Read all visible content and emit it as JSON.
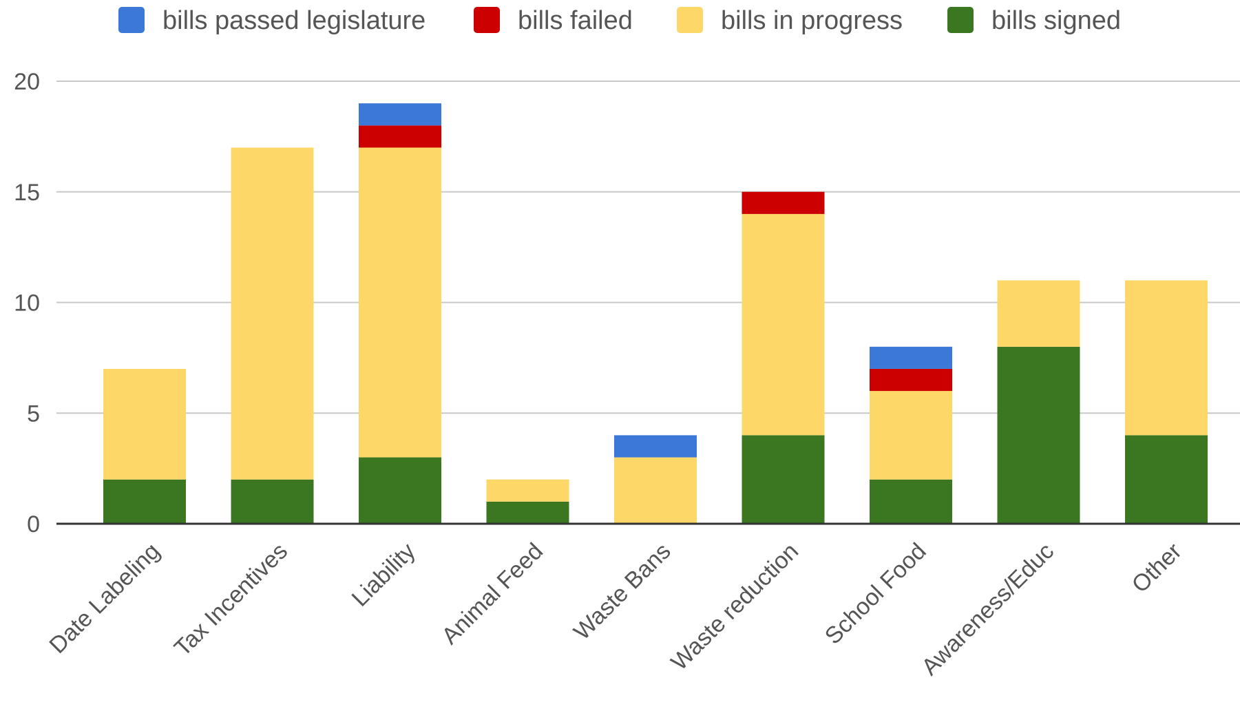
{
  "chart_data": {
    "type": "bar",
    "stacked": true,
    "title": "",
    "xlabel": "",
    "ylabel": "",
    "ylim": [
      0,
      20
    ],
    "yticks": [
      0,
      5,
      10,
      15,
      20
    ],
    "grid": true,
    "legend_position": "top",
    "categories": [
      "Date Labeling",
      "Tax Incentives",
      "Liability",
      "Animal Feed",
      "Waste Bans",
      "Waste reduction",
      "School Food",
      "Awareness/Educ",
      "Other"
    ],
    "series": [
      {
        "name": "bills signed",
        "color": "#3a7720",
        "values": [
          2,
          2,
          3,
          1,
          0,
          4,
          2,
          8,
          4
        ]
      },
      {
        "name": "bills in progress",
        "color": "#fdd868",
        "values": [
          5,
          15,
          14,
          1,
          3,
          10,
          4,
          3,
          7
        ]
      },
      {
        "name": "bills failed",
        "color": "#cc0000",
        "values": [
          0,
          0,
          1,
          0,
          0,
          1,
          1,
          0,
          0
        ]
      },
      {
        "name": "bills passed legislature",
        "color": "#3c78d8",
        "values": [
          0,
          0,
          1,
          0,
          1,
          0,
          1,
          0,
          0
        ]
      }
    ],
    "legend_order": [
      "bills passed legislature",
      "bills failed",
      "bills in progress",
      "bills signed"
    ]
  }
}
